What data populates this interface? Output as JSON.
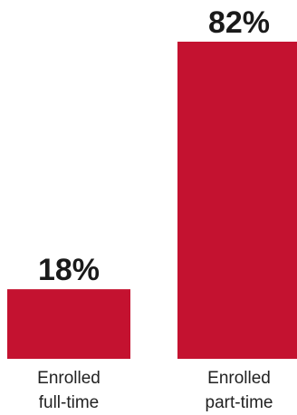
{
  "chart_data": {
    "type": "bar",
    "categories": [
      [
        "Enrolled",
        "full-time"
      ],
      [
        "Enrolled",
        "part-time"
      ]
    ],
    "values": [
      18,
      82
    ],
    "value_labels": [
      "18%",
      "82%"
    ],
    "unit": "%",
    "title": "",
    "xlabel": "",
    "ylabel": "",
    "ylim": [
      0,
      82
    ],
    "grid": false,
    "legend": "none",
    "bar_color": "#C41230"
  }
}
